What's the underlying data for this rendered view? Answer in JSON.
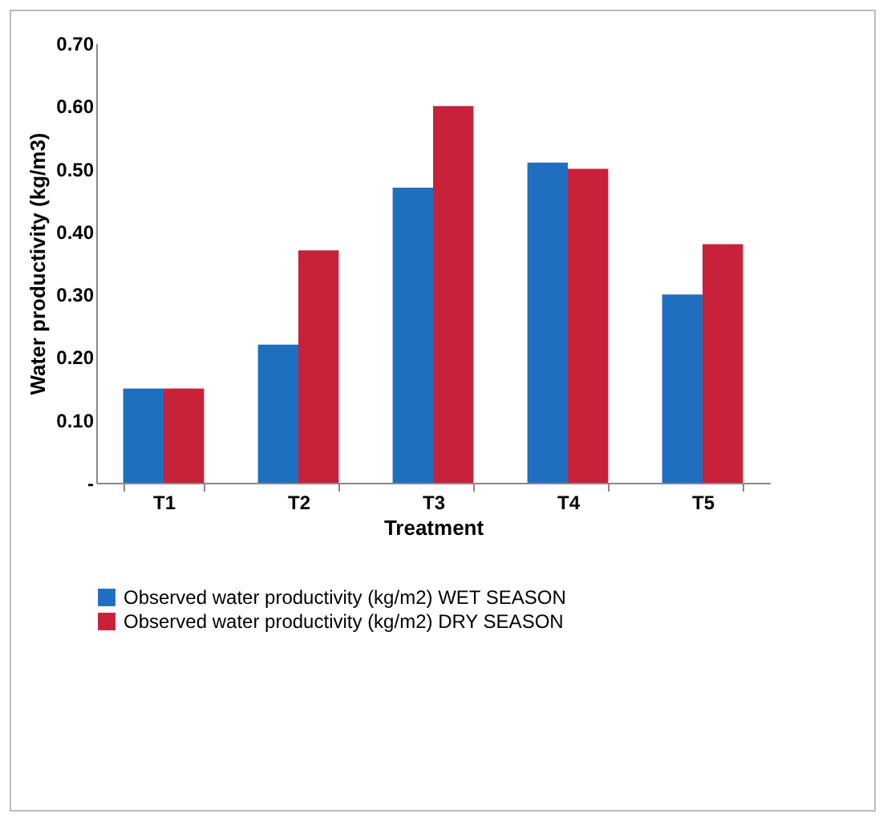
{
  "chart_data": {
    "type": "bar",
    "xlabel": "Treatment",
    "ylabel": "Water productivity (kg/m3)",
    "categories": [
      "T1",
      "T2",
      "T3",
      "T4",
      "T5"
    ],
    "series": [
      {
        "name": "Observed water productivity (kg/m2) WET SEASON",
        "color": "#1f6fc0",
        "values": [
          0.15,
          0.22,
          0.47,
          0.51,
          0.3
        ]
      },
      {
        "name": "Observed water productivity (kg/m2) DRY SEASON",
        "color": "#c8213a",
        "values": [
          0.15,
          0.37,
          0.6,
          0.5,
          0.38
        ]
      }
    ],
    "ylim": [
      0,
      0.7
    ],
    "yticks": [
      {
        "value": 0,
        "label": "-"
      },
      {
        "value": 0.1,
        "label": "0.10"
      },
      {
        "value": 0.2,
        "label": "0.20"
      },
      {
        "value": 0.3,
        "label": "0.30"
      },
      {
        "value": 0.4,
        "label": "0.40"
      },
      {
        "value": 0.5,
        "label": "0.50"
      },
      {
        "value": 0.6,
        "label": "0.60"
      },
      {
        "value": 0.7,
        "label": "0.70"
      }
    ],
    "grid": false,
    "legend": "bottom"
  }
}
